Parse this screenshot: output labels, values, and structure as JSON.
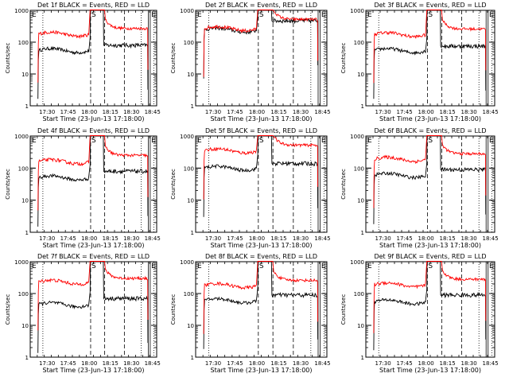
{
  "chart_data": {
    "type": "line",
    "common": {
      "xlabel": "Start Time (23-Jun-13 17:18:00)",
      "ylabel": "Counts/sec",
      "yscale": "log",
      "ylim": [
        1,
        1000
      ],
      "ytick_values": [
        1,
        10,
        100,
        1000
      ],
      "ytick_labels": [
        "1",
        "10",
        "100",
        "1000"
      ],
      "xlim_minutes": [
        1038,
        1128
      ],
      "xtick_minutes": [
        1050,
        1065,
        1080,
        1095,
        1110,
        1125
      ],
      "xtick_labels": [
        "17:30",
        "17:45",
        "18:00",
        "18:15",
        "18:30",
        "18:45"
      ],
      "markers": {
        "E": 1038,
        "S": 1081,
        "EE": 1123
      },
      "dotted_lines": [
        1047,
        1117,
        1126
      ],
      "dashed_lines": [
        1081,
        1091,
        1105
      ],
      "solid_lines": [
        1122,
        1123.4
      ],
      "colors": {
        "events": "#000000",
        "lld": "#ff0000"
      }
    },
    "panels": [
      {
        "title": "Det 1f BLACK = Events, RED = LLD",
        "events_level": 55,
        "lld_level": 180,
        "events_after": 80,
        "lld_after": 270
      },
      {
        "title": "Det 2f BLACK = Events, RED = LLD",
        "events_level": 240,
        "lld_level": 270,
        "events_after": 470,
        "lld_after": 520
      },
      {
        "title": "Det 3f BLACK = Events, RED = LLD",
        "events_level": 55,
        "lld_level": 175,
        "events_after": 75,
        "lld_after": 260
      },
      {
        "title": "Det 4f BLACK = Events, RED = LLD",
        "events_level": 50,
        "lld_level": 160,
        "events_after": 80,
        "lld_after": 250
      },
      {
        "title": "Det 5f BLACK = Events, RED = LLD",
        "events_level": 100,
        "lld_level": 350,
        "events_after": 140,
        "lld_after": 520
      },
      {
        "title": "Det 6f BLACK = Events, RED = LLD",
        "events_level": 60,
        "lld_level": 190,
        "events_after": 90,
        "lld_after": 280
      },
      {
        "title": "Det 7f BLACK = Events, RED = LLD",
        "events_level": 45,
        "lld_level": 230,
        "events_after": 70,
        "lld_after": 300
      },
      {
        "title": "Det 8f BLACK = Events, RED = LLD",
        "events_level": 60,
        "lld_level": 180,
        "events_after": 90,
        "lld_after": 260
      },
      {
        "title": "Det 9f BLACK = Events, RED = LLD",
        "events_level": 55,
        "lld_level": 190,
        "events_after": 90,
        "lld_after": 280
      }
    ]
  }
}
